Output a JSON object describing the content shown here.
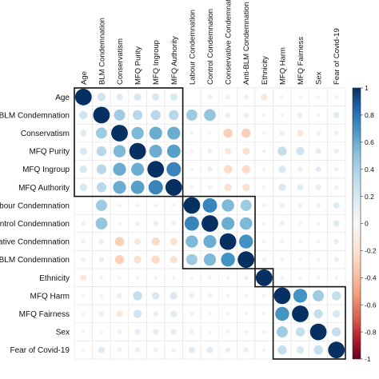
{
  "chart_data": {
    "type": "heatmap",
    "title": "",
    "variables": [
      "Age",
      "BLM Condemnation",
      "Conservatism",
      "MFQ Purity",
      "MFQ Ingroup",
      "MFQ Authority",
      "Labour Condemnation",
      "Control Condemnation",
      "Conservative Condemnation",
      "Anti-BLM Condemnation",
      "Ethnicity",
      "MFQ Harm",
      "MFQ Fairness",
      "Sex",
      "Fear of Covid-19"
    ],
    "row_labels": [
      "Age",
      "BLM Condemnation",
      "Conservatism",
      "MFQ Purity",
      "MFQ Ingroup",
      "MFQ Authority",
      "/Labour Condemnation",
      "Control Condemnation",
      "ervative Condemnation",
      "nti-BLM Condemnation",
      "Ethnicity",
      "MFQ Harm",
      "MFQ Fairness",
      "Sex",
      "Fear of Covid-19"
    ],
    "matrix": [
      [
        1,
        0.25,
        0.15,
        0.2,
        0.2,
        0.2,
        0,
        0.08,
        0.08,
        0.08,
        -0.15,
        0.05,
        0.05,
        0.05,
        0.05
      ],
      [
        0.25,
        1,
        0.45,
        0.35,
        0.35,
        0.35,
        0.45,
        0.5,
        0.1,
        0.1,
        0.05,
        0.05,
        -0.1,
        0.05,
        0.15
      ],
      [
        0.15,
        0.45,
        1,
        0.55,
        0.6,
        0.6,
        0.05,
        0.05,
        -0.3,
        -0.3,
        0.05,
        0.1,
        -0.15,
        0.08,
        0.08
      ],
      [
        0.2,
        0.35,
        0.55,
        1,
        0.6,
        0.65,
        0.05,
        0.08,
        -0.15,
        -0.2,
        0.05,
        0.3,
        0.25,
        0.12,
        0.1
      ],
      [
        0.2,
        0.35,
        0.6,
        0.6,
        1,
        0.75,
        0.05,
        0.1,
        -0.25,
        -0.25,
        0.05,
        0.2,
        0.1,
        0.12,
        0.08
      ],
      [
        0.2,
        0.35,
        0.6,
        0.65,
        0.75,
        1,
        0.05,
        0.08,
        -0.2,
        -0.2,
        0.05,
        0.2,
        0.15,
        0.12,
        0.08
      ],
      [
        0,
        0.45,
        0.05,
        0.05,
        0.05,
        0.05,
        1,
        0.75,
        0.55,
        0.45,
        0.05,
        0.1,
        0.08,
        0.08,
        0.15
      ],
      [
        0.08,
        0.5,
        0.05,
        0.08,
        0.1,
        0.08,
        0.75,
        1,
        0.6,
        0.55,
        0.05,
        0.08,
        0.05,
        0.05,
        0.15
      ],
      [
        0.08,
        0.1,
        -0.3,
        -0.15,
        -0.25,
        -0.2,
        0.55,
        0.6,
        1,
        0.7,
        0.05,
        0.05,
        0.05,
        0.05,
        0.1
      ],
      [
        0.08,
        0.1,
        -0.3,
        -0.2,
        -0.25,
        -0.2,
        0.45,
        0.55,
        0.7,
        1,
        0.08,
        0.05,
        0.05,
        0.05,
        0.1
      ],
      [
        -0.15,
        0.05,
        0.05,
        0.05,
        0.05,
        0.05,
        0.05,
        0.05,
        0.05,
        0.08,
        1,
        0.05,
        0.05,
        0.05,
        0.05
      ],
      [
        0.05,
        0.05,
        0.1,
        0.3,
        0.2,
        0.2,
        0.1,
        0.08,
        0.05,
        0.05,
        0.05,
        1,
        0.7,
        0.45,
        0.3
      ],
      [
        0.05,
        -0.1,
        -0.15,
        0.25,
        0.1,
        0.15,
        0.08,
        0.05,
        0.05,
        0.05,
        0.05,
        0.7,
        1,
        0.3,
        0.2
      ],
      [
        0.05,
        0.05,
        0.08,
        0.12,
        0.12,
        0.12,
        0.08,
        0.05,
        0.05,
        0.05,
        0.05,
        0.45,
        0.3,
        1,
        0.3
      ],
      [
        0.05,
        0.15,
        0.08,
        0.1,
        0.08,
        0.08,
        0.15,
        0.15,
        0.1,
        0.1,
        0.05,
        0.3,
        0.2,
        0.3,
        1
      ]
    ],
    "clusters": [
      [
        0,
        5
      ],
      [
        6,
        9
      ],
      [
        10,
        10
      ],
      [
        11,
        14
      ]
    ],
    "colorbar": {
      "min": -1,
      "max": 1,
      "ticks": [
        "1",
        "0.8",
        "0.6",
        "0.4",
        "0.2",
        "0",
        "-0.2",
        "-0.4",
        "-0.6",
        "-0.8",
        "-1"
      ],
      "neg_color": "#67001f",
      "mid_color": "#f7f7f7",
      "pos_color": "#053061"
    },
    "grid": true
  }
}
